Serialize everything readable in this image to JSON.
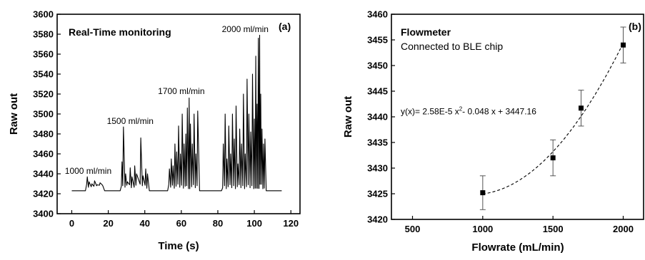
{
  "chart_data": [
    {
      "type": "line",
      "panel": "(a)",
      "title": "Real-Time monitoring",
      "xlabel": "Time (s)",
      "ylabel": "Raw out",
      "xlim": [
        -8,
        125
      ],
      "ylim": [
        3400,
        3600
      ],
      "xticks": [
        0,
        20,
        40,
        60,
        80,
        100,
        120
      ],
      "yticks": [
        3400,
        3420,
        3440,
        3460,
        3480,
        3500,
        3520,
        3540,
        3560,
        3580,
        3600
      ],
      "annotations": [
        {
          "text": "1000 ml/min",
          "x": 9,
          "y": 3440
        },
        {
          "text": "1500 ml/min",
          "x": 32,
          "y": 3490
        },
        {
          "text": "1700 ml/min",
          "x": 60,
          "y": 3520
        },
        {
          "text": "2000 ml/min",
          "x": 95,
          "y": 3582
        }
      ],
      "baseline": 3423,
      "x_end": 115,
      "segments": [
        {
          "flow": "1000 ml/min",
          "x_start": 7.5,
          "x_end": 18,
          "peaks": [
            [
              8.5,
              3437
            ],
            [
              9.5,
              3432
            ],
            [
              11,
              3430
            ],
            [
              12.5,
              3433
            ],
            [
              14,
              3429
            ],
            [
              15.5,
              3431
            ],
            [
              17,
              3428
            ]
          ]
        },
        {
          "flow": "1500 ml/min",
          "x_start": 26.5,
          "x_end": 42.5,
          "peaks": [
            [
              27.5,
              3452
            ],
            [
              28.3,
              3487
            ],
            [
              29.5,
              3440
            ],
            [
              30.5,
              3432
            ],
            [
              32,
              3446
            ],
            [
              33,
              3437
            ],
            [
              34.5,
              3448
            ],
            [
              35.5,
              3440
            ],
            [
              37.8,
              3476
            ],
            [
              39,
              3438
            ],
            [
              40.5,
              3445
            ],
            [
              41.5,
              3440
            ]
          ]
        },
        {
          "flow": "1700 ml/min",
          "x_start": 52.5,
          "x_end": 70,
          "peaks": [
            [
              53.5,
              3445
            ],
            [
              54.5,
              3455
            ],
            [
              55.5,
              3448
            ],
            [
              56.5,
              3470
            ],
            [
              57.5,
              3462
            ],
            [
              58.5,
              3488
            ],
            [
              59.5,
              3460
            ],
            [
              60.5,
              3500
            ],
            [
              61.5,
              3470
            ],
            [
              62.5,
              3480
            ],
            [
              63.3,
              3506
            ],
            [
              64.3,
              3516
            ],
            [
              65,
              3490
            ],
            [
              66,
              3470
            ],
            [
              67,
              3500
            ],
            [
              68,
              3460
            ],
            [
              69,
              3503
            ]
          ]
        },
        {
          "flow": "2000 ml/min",
          "x_start": 82,
          "x_end": 106.5,
          "peaks": [
            [
              83,
              3470
            ],
            [
              84,
              3500
            ],
            [
              85,
              3455
            ],
            [
              86,
              3488
            ],
            [
              87,
              3460
            ],
            [
              88,
              3500
            ],
            [
              89,
              3475
            ],
            [
              90,
              3508
            ],
            [
              91,
              3450
            ],
            [
              92,
              3485
            ],
            [
              93,
              3470
            ],
            [
              94,
              3520
            ],
            [
              95,
              3460
            ],
            [
              96,
              3535
            ],
            [
              97,
              3500
            ],
            [
              98,
              3482
            ],
            [
              99,
              3540
            ],
            [
              100,
              3495
            ],
            [
              100.8,
              3558
            ],
            [
              101.5,
              3510
            ],
            [
              102.2,
              3576
            ],
            [
              102.9,
              3579
            ],
            [
              103.5,
              3520
            ],
            [
              104.2,
              3485
            ],
            [
              105,
              3470
            ],
            [
              105.8,
              3475
            ]
          ]
        }
      ]
    },
    {
      "type": "scatter",
      "panel": "(b)",
      "title": "Flowmeter",
      "subtitle": "Connected to BLE chip",
      "xlabel": "Flowrate (mL/min)",
      "ylabel": "Raw out",
      "xlim": [
        350,
        2150
      ],
      "ylim": [
        3420,
        3460
      ],
      "xticks": [
        500,
        1000,
        1500,
        2000
      ],
      "yticks": [
        3420,
        3425,
        3430,
        3435,
        3440,
        3445,
        3450,
        3455,
        3460
      ],
      "points": [
        {
          "x": 1000,
          "y": 3425.2,
          "err": 3.3
        },
        {
          "x": 1500,
          "y": 3432.0,
          "err": 3.5
        },
        {
          "x": 1700,
          "y": 3441.7,
          "err": 3.5
        },
        {
          "x": 2000,
          "y": 3454.0,
          "err": 3.5
        }
      ],
      "fit": {
        "equation": "y(x)= 2.58E-5 x",
        "exponent": "2",
        "equation_rest": "- 0.048 x + 3447.16",
        "a": 2.58e-05,
        "b": -0.048,
        "c": 3447.16,
        "x_from": 1000,
        "x_to": 2000,
        "style": "dashed"
      }
    }
  ]
}
